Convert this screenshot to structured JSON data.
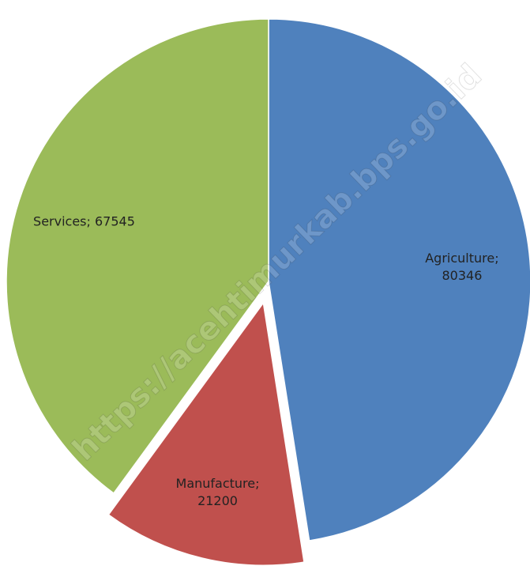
{
  "watermark": "https://acehtimurkab.bps.go.id",
  "chart_data": {
    "type": "pie",
    "title": "",
    "slices": [
      {
        "label": "Agriculture",
        "value": 80346,
        "color": "#4f81bd",
        "display": [
          "Agriculture;",
          "80346"
        ],
        "exploded": false
      },
      {
        "label": "Manufacture",
        "value": 21200,
        "color": "#c0504d",
        "display": [
          "Manufacture;",
          "21200"
        ],
        "exploded": true
      },
      {
        "label": "Services",
        "value": 67545,
        "color": "#9bbb59",
        "display": [
          "Services; 67545"
        ],
        "exploded": false
      }
    ],
    "start_angle": "12 o'clock",
    "direction": "clockwise",
    "legend": "none",
    "data_labels": "inside"
  }
}
